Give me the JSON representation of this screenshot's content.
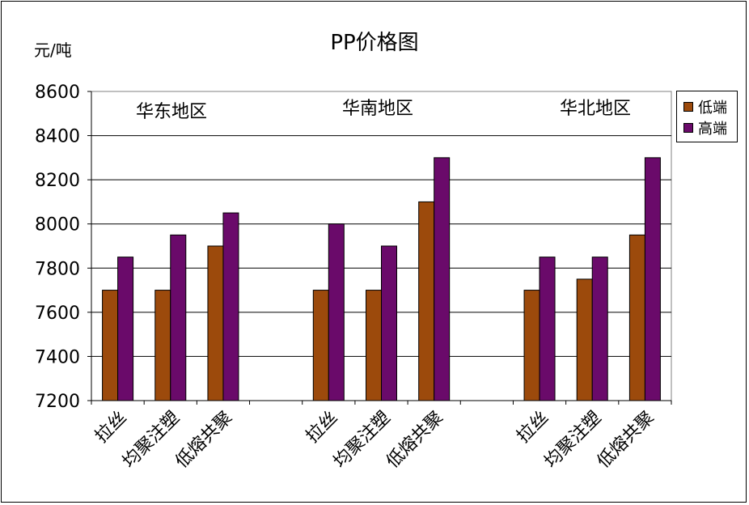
{
  "chart_data": {
    "type": "bar",
    "title": "PP价格图",
    "ylabel": "元/吨",
    "xlabel": "",
    "ylim": [
      7200,
      8600
    ],
    "yticks": [
      7200,
      7400,
      7600,
      7800,
      8000,
      8200,
      8400,
      8600
    ],
    "grid": true,
    "legend_position": "right",
    "regions": [
      "华东地区",
      "华南地区",
      "华北地区"
    ],
    "categories": [
      "拉丝",
      "均聚注塑",
      "低熔共聚",
      "",
      "拉丝",
      "均聚注塑",
      "低熔共聚",
      "",
      "拉丝",
      "均聚注塑",
      "低熔共聚"
    ],
    "series": [
      {
        "name": "低端",
        "color": "#9c4a0c",
        "values": [
          7700,
          7700,
          7900,
          null,
          7700,
          7700,
          8100,
          null,
          7700,
          7750,
          7950
        ]
      },
      {
        "name": "高端",
        "color": "#6a0a6a",
        "values": [
          7850,
          7950,
          8050,
          null,
          8000,
          7900,
          8300,
          null,
          7850,
          7850,
          8300
        ]
      }
    ]
  }
}
